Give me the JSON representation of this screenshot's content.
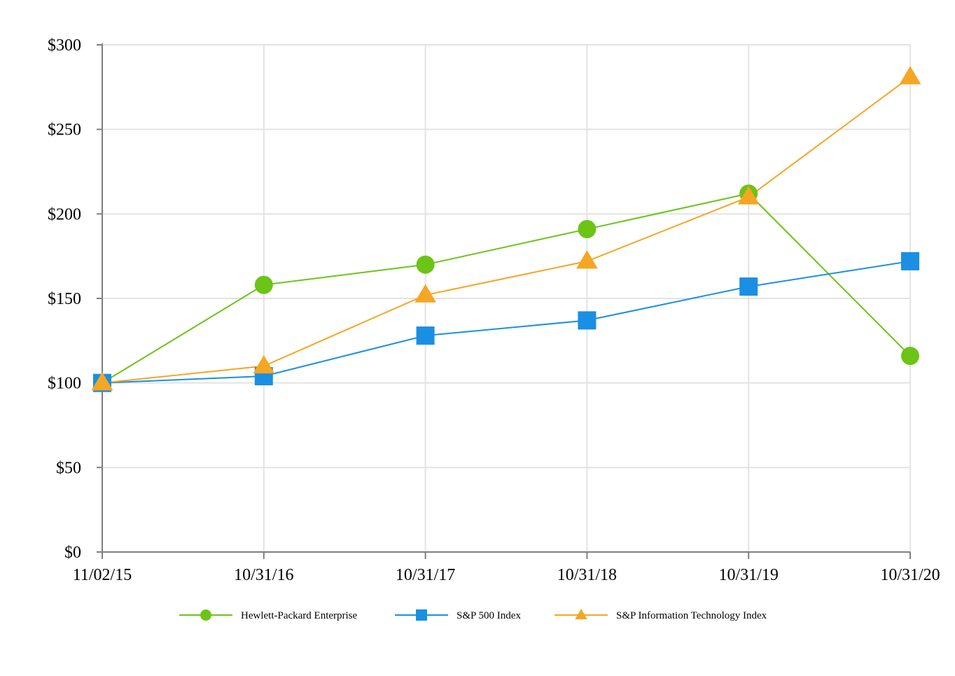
{
  "chart_data": {
    "type": "line",
    "title": "",
    "xlabel": "",
    "ylabel": "",
    "categories": [
      "11/02/15",
      "10/31/16",
      "10/31/17",
      "10/31/18",
      "10/31/19",
      "10/31/20"
    ],
    "ylim": [
      0,
      300
    ],
    "yticks": [
      0,
      50,
      100,
      150,
      200,
      250,
      300
    ],
    "ytick_labels": [
      "$0",
      "$50",
      "$100",
      "$150",
      "$200",
      "$250",
      "$300"
    ],
    "grid": true,
    "legend_position": "bottom",
    "series": [
      {
        "name": "Hewlett-Packard Enterprise",
        "values": [
          100,
          158,
          170,
          191,
          212,
          116
        ],
        "color": "#6cc417",
        "marker": "circle"
      },
      {
        "name": "S&P 500 Index",
        "values": [
          100,
          104,
          128,
          137,
          157,
          172
        ],
        "color": "#1a8fe3",
        "marker": "square"
      },
      {
        "name": "S&P Information Technology Index",
        "values": [
          100,
          110,
          152,
          172,
          210,
          281
        ],
        "color": "#f5a623",
        "marker": "triangle"
      }
    ]
  }
}
